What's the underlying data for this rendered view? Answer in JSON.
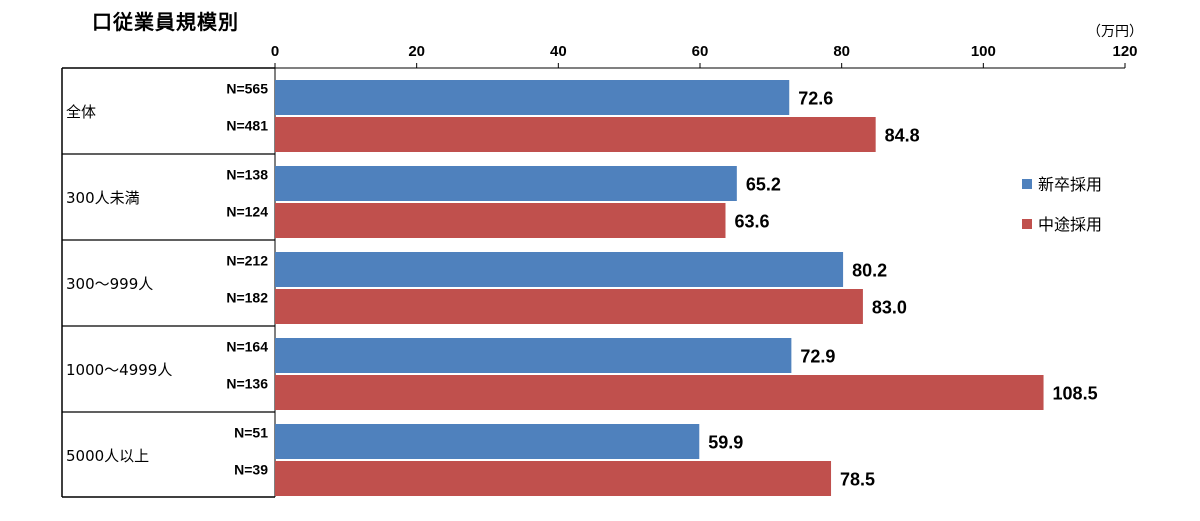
{
  "chart_data": {
    "type": "bar",
    "orientation": "horizontal",
    "title": "口従業員規模別",
    "unit_label": "（万円）",
    "xlim": [
      0,
      120
    ],
    "x_ticks": [
      0,
      20,
      40,
      60,
      80,
      100,
      120
    ],
    "grid": false,
    "legend_position": "right",
    "categories": [
      "全体",
      "300人未満",
      "300～999人",
      "1000～4999人",
      "5000人以上"
    ],
    "series": [
      {
        "name": "新卒採用",
        "color": "#4f81bd",
        "values": [
          72.6,
          65.2,
          80.2,
          72.9,
          59.9
        ],
        "value_labels": [
          "72.6",
          "65.2",
          "80.2",
          "72.9",
          "59.9"
        ],
        "n_labels": [
          "N=565",
          "N=138",
          "N=212",
          "N=164",
          "N=51"
        ]
      },
      {
        "name": "中途採用",
        "color": "#c0504d",
        "values": [
          84.8,
          63.6,
          83.0,
          108.5,
          78.5
        ],
        "value_labels": [
          "84.8",
          "63.6",
          "83.0",
          "108.5",
          "78.5"
        ],
        "n_labels": [
          "N=481",
          "N=124",
          "N=182",
          "N=136",
          "N=39"
        ]
      }
    ]
  }
}
